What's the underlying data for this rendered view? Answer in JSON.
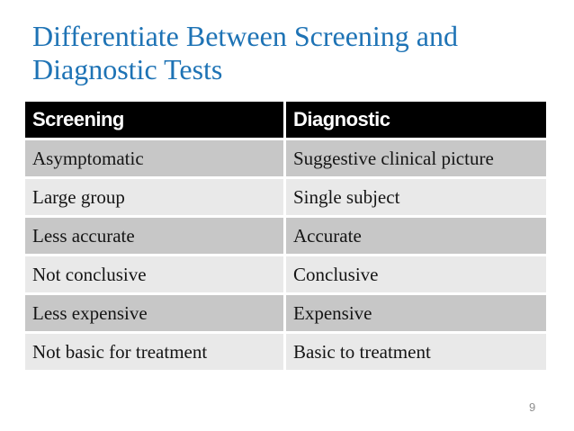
{
  "slide": {
    "title_line1": "Differentiate Between Screening and",
    "title_line2": "Diagnostic Tests",
    "page_number": "9"
  },
  "table": {
    "columns": [
      "Screening",
      "Diagnostic"
    ],
    "rows": [
      [
        "Asymptomatic",
        "Suggestive clinical picture"
      ],
      [
        "Large group",
        "Single subject"
      ],
      [
        "Less accurate",
        "Accurate"
      ],
      [
        "Not conclusive",
        "Conclusive"
      ],
      [
        "Less expensive",
        "Expensive"
      ],
      [
        "Not basic for treatment",
        "Basic to treatment"
      ]
    ]
  },
  "colors": {
    "title_blue": "#1E73B5",
    "header_bg": "#000000",
    "header_text": "#FFFFFF",
    "row_gray": "#C7C7C7",
    "row_light": "#E9E9E9",
    "page_number_gray": "#8E8E8E"
  }
}
